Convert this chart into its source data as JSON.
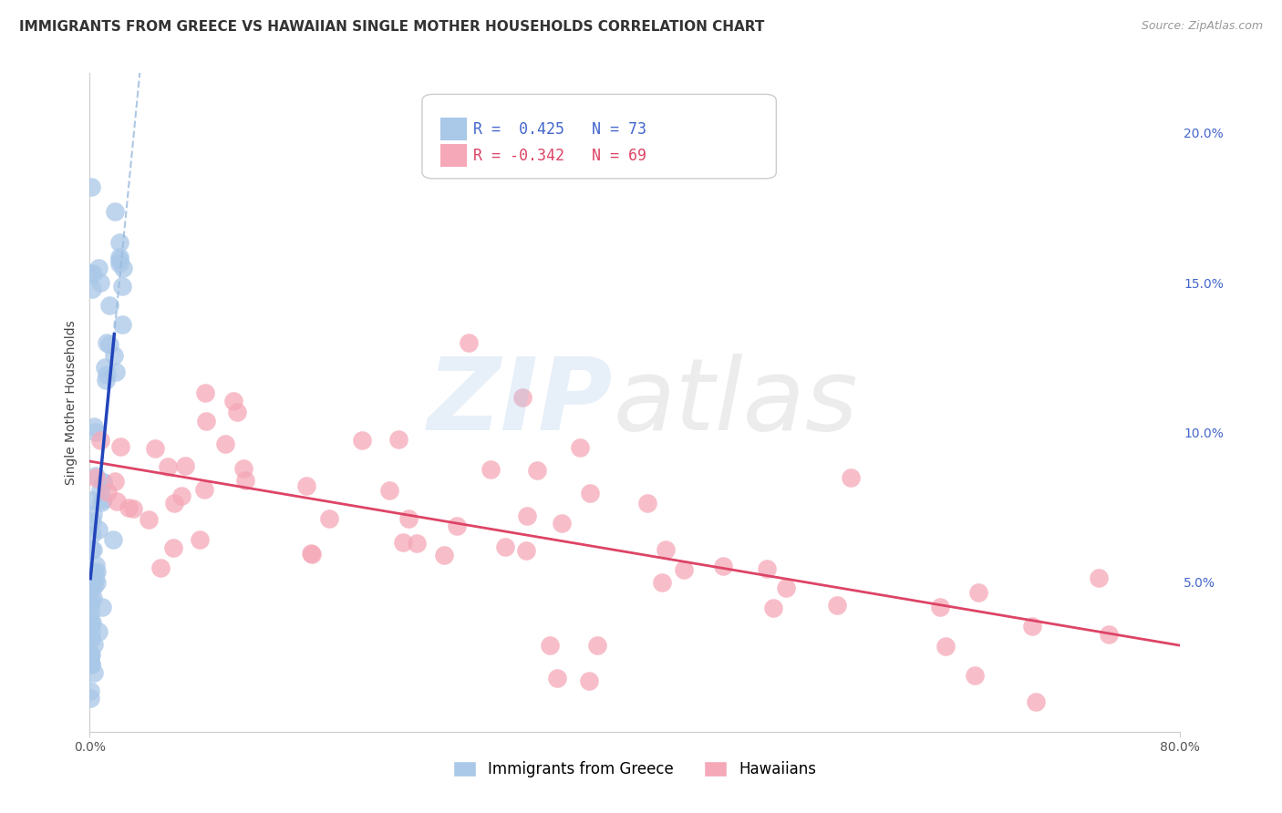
{
  "title": "IMMIGRANTS FROM GREECE VS HAWAIIAN SINGLE MOTHER HOUSEHOLDS CORRELATION CHART",
  "source": "Source: ZipAtlas.com",
  "ylabel": "Single Mother Households",
  "legend_blue_label": "Immigrants from Greece",
  "legend_pink_label": "Hawaiians",
  "blue_color": "#aac8e8",
  "pink_color": "#f5a8b8",
  "blue_line_color": "#2244bb",
  "pink_line_color": "#dd4466",
  "dashed_color": "#99bbdd",
  "right_ytick_color": "#4466cc",
  "xlim": [
    0.0,
    0.8
  ],
  "ylim": [
    0.0,
    0.22
  ],
  "right_yticks": [
    0.05,
    0.1,
    0.15,
    0.2
  ],
  "right_yticklabels": [
    "5.0%",
    "10.0%",
    "15.0%",
    "20.0%"
  ],
  "xtick_positions": [
    0.0,
    0.8
  ],
  "xtick_labels": [
    "0.0%",
    "80.0%"
  ],
  "title_fontsize": 11,
  "source_fontsize": 9,
  "tick_fontsize": 10,
  "ylabel_fontsize": 10,
  "legend_fontsize": 12
}
